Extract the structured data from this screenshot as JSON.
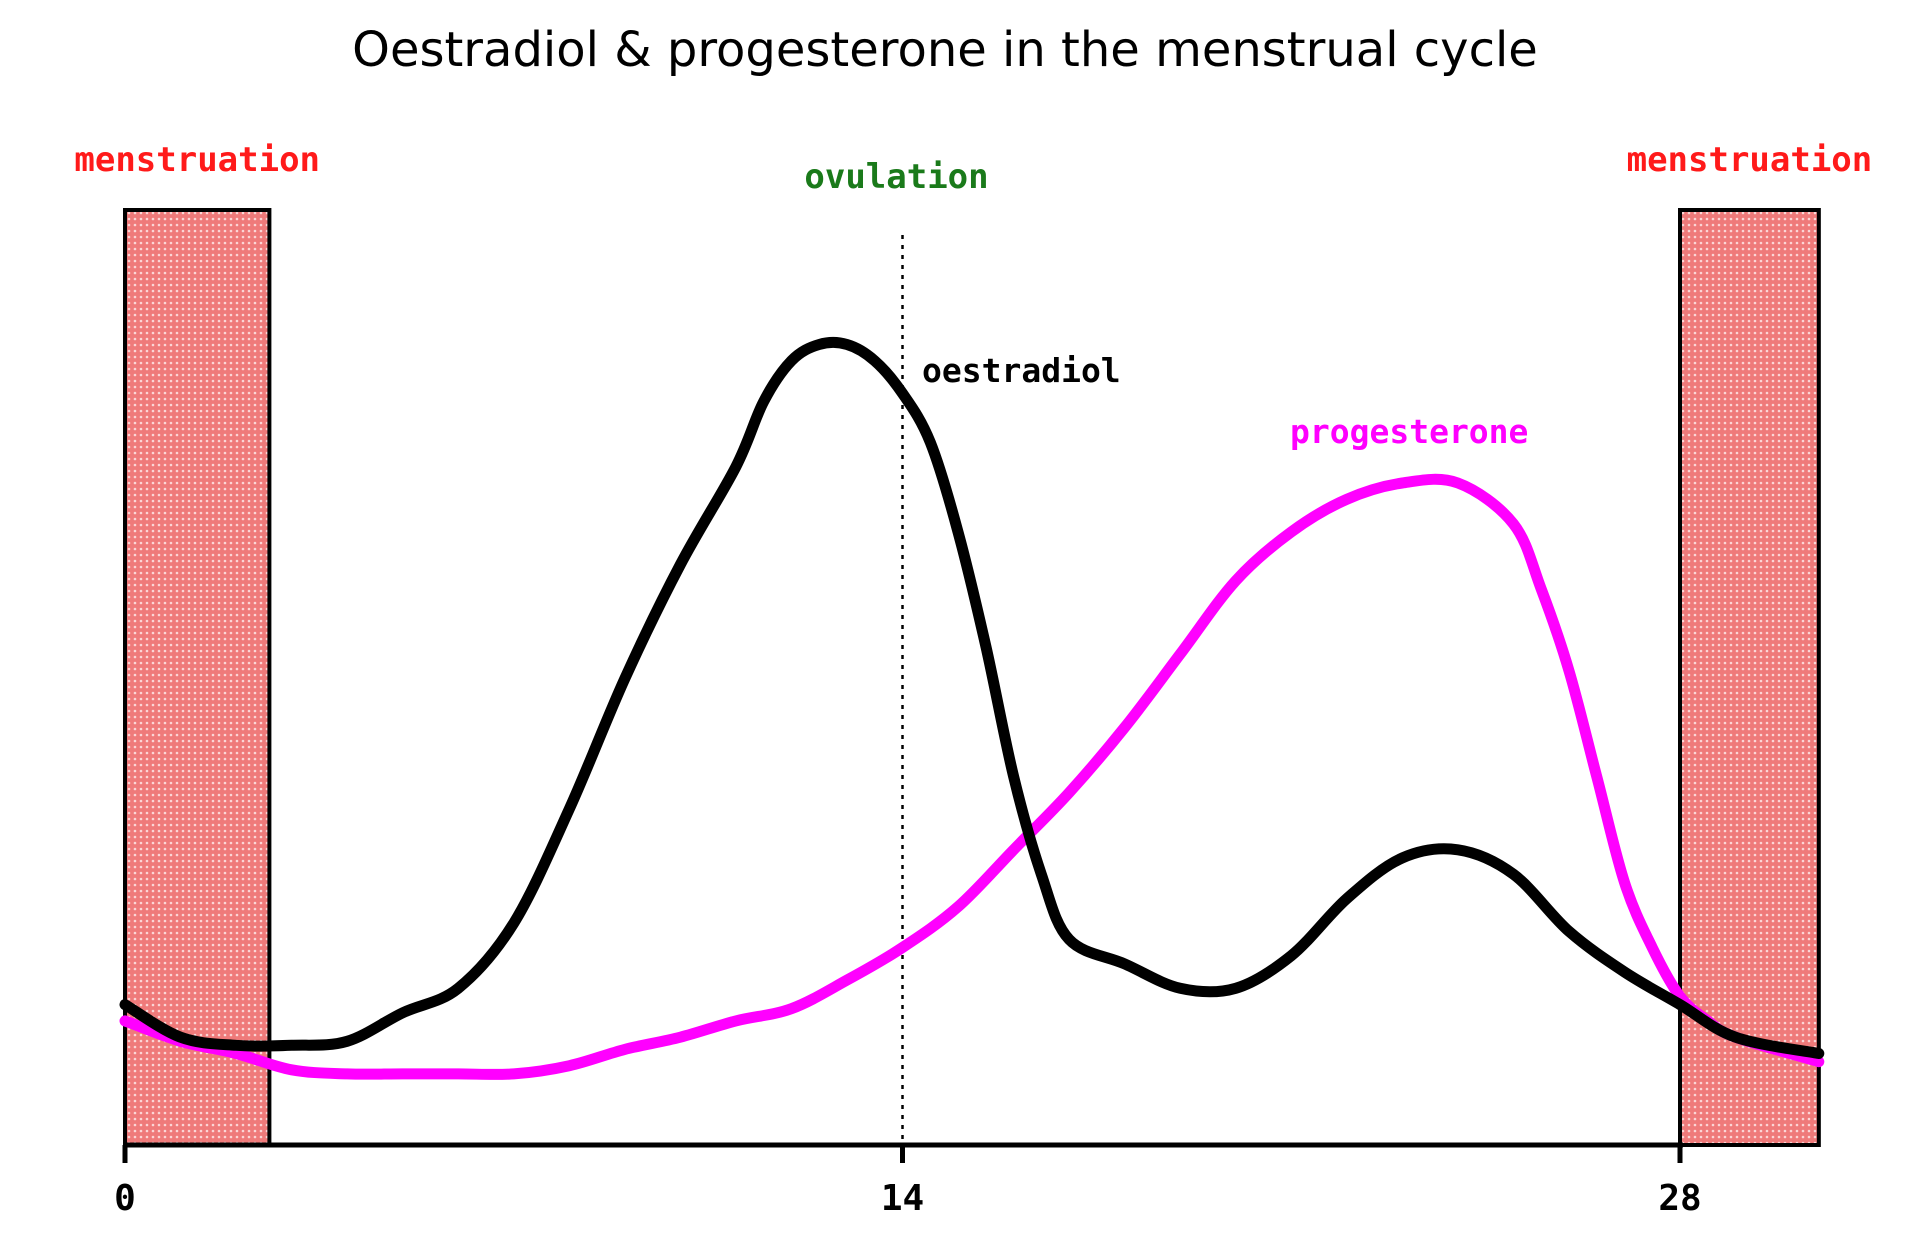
{
  "chart_data": {
    "type": "line",
    "title": "Oestradiol & progesterone in the menstrual cycle",
    "xlabel": "",
    "ylabel": "",
    "xlim": [
      0,
      30.5
    ],
    "ylim": [
      0,
      100
    ],
    "xticks": [
      {
        "value": 0,
        "label": "0"
      },
      {
        "value": 14,
        "label": "14"
      },
      {
        "value": 28,
        "label": "28"
      }
    ],
    "phases": [
      {
        "label": "menstruation",
        "start": 0,
        "end": 2.6,
        "color": "#ef7a7a"
      },
      {
        "label": "menstruation",
        "start": 28,
        "end": 30.5,
        "color": "#ef7a7a"
      }
    ],
    "markers": [
      {
        "label": "ovulation",
        "x": 14,
        "color": "#1a7a1a"
      }
    ],
    "series": [
      {
        "name": "oestradiol",
        "color": "#000000",
        "x": [
          0,
          1,
          2,
          3,
          4,
          5,
          6,
          7,
          8,
          9,
          10,
          11,
          11.5,
          12,
          12.5,
          13,
          13.5,
          14,
          14.5,
          15,
          15.5,
          16,
          16.5,
          17,
          18,
          19,
          20,
          21,
          22,
          23,
          24,
          25,
          26,
          27,
          28,
          29,
          30.5
        ],
        "y": [
          16,
          12,
          11,
          11,
          11.5,
          15,
          18,
          26,
          40,
          56,
          70,
          82,
          90,
          95,
          97,
          97,
          95,
          91,
          85,
          74,
          60,
          44,
          32,
          24,
          21,
          18,
          18,
          22,
          29,
          34,
          35,
          32,
          25,
          20,
          16,
          12,
          10
        ]
      },
      {
        "name": "progesterone",
        "color": "#ff00ff",
        "x": [
          0,
          1,
          2,
          3,
          4,
          5,
          6,
          7,
          8,
          9,
          10,
          11,
          12,
          13,
          14,
          15,
          16,
          17,
          18,
          19,
          20,
          21,
          22,
          23,
          24,
          25,
          25.5,
          26,
          26.5,
          27,
          27.5,
          28,
          28.5,
          29,
          30.5
        ],
        "y": [
          14,
          11.5,
          10,
          8,
          7.5,
          7.5,
          7.5,
          7.5,
          8.5,
          10.5,
          12,
          14,
          15.5,
          19,
          23,
          28,
          35,
          42,
          50,
          59,
          68,
          74,
          78,
          80,
          80,
          75,
          67,
          57,
          44,
          31,
          23,
          17,
          14,
          12,
          9
        ]
      }
    ]
  }
}
